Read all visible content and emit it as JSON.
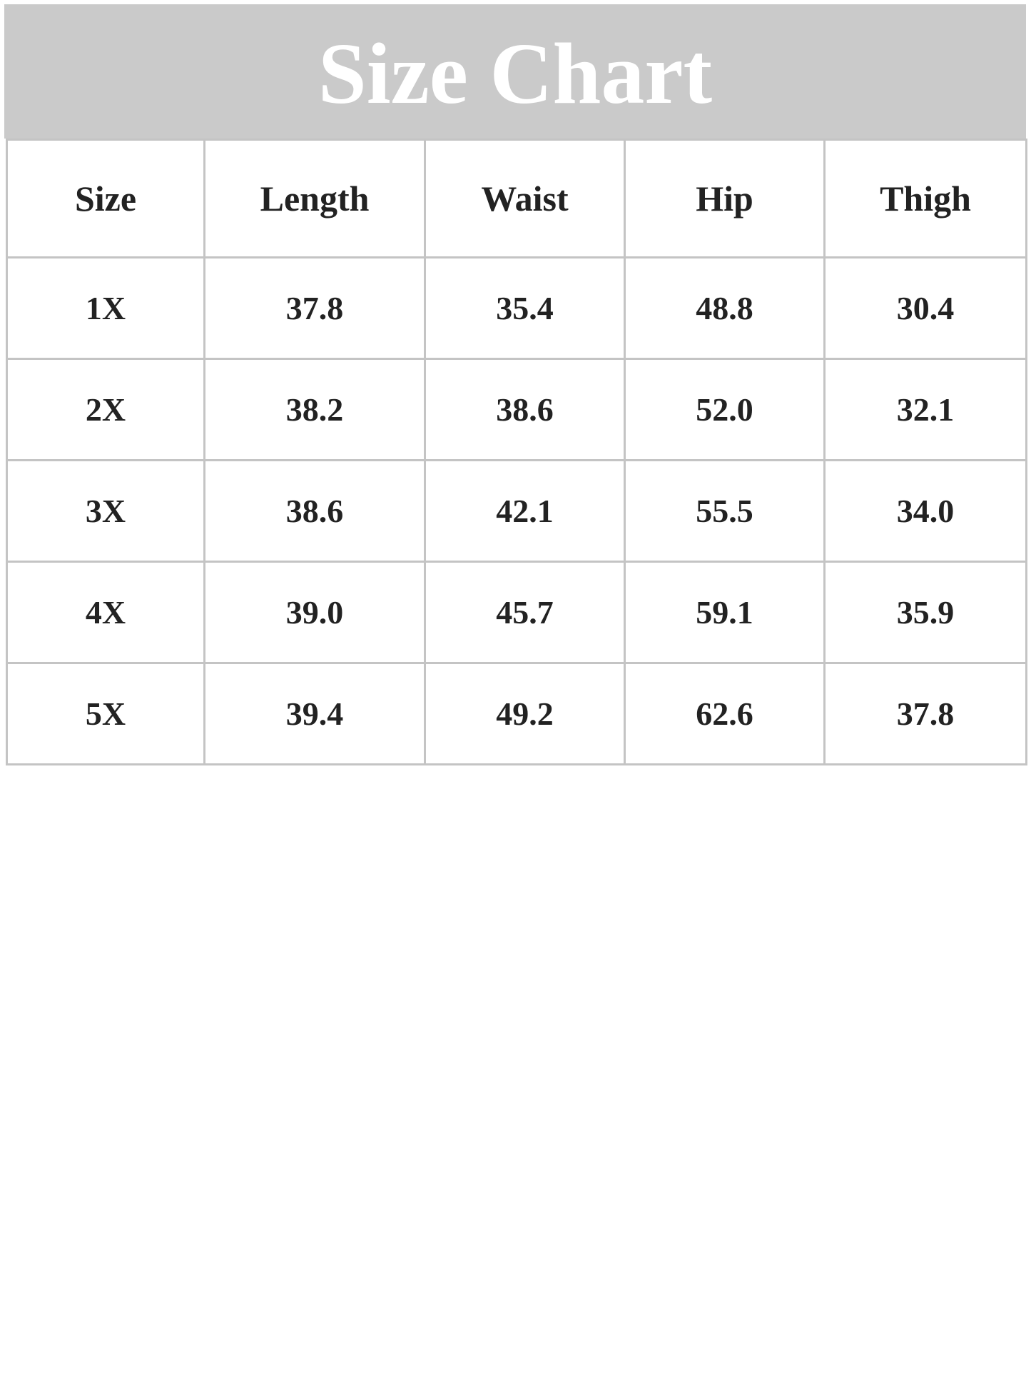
{
  "title": "Size Chart",
  "colors": {
    "title_bar": "#cacaca",
    "grid": "#c4c4c4",
    "text": "#222222"
  },
  "table": {
    "headers": [
      "Size",
      "Length",
      "Waist",
      "Hip",
      "Thigh"
    ],
    "rows": [
      [
        "1X",
        "37.8",
        "35.4",
        "48.8",
        "30.4"
      ],
      [
        "2X",
        "38.2",
        "38.6",
        "52.0",
        "32.1"
      ],
      [
        "3X",
        "38.6",
        "42.1",
        "55.5",
        "34.0"
      ],
      [
        "4X",
        "39.0",
        "45.7",
        "59.1",
        "35.9"
      ],
      [
        "5X",
        "39.4",
        "49.2",
        "62.6",
        "37.8"
      ]
    ]
  }
}
